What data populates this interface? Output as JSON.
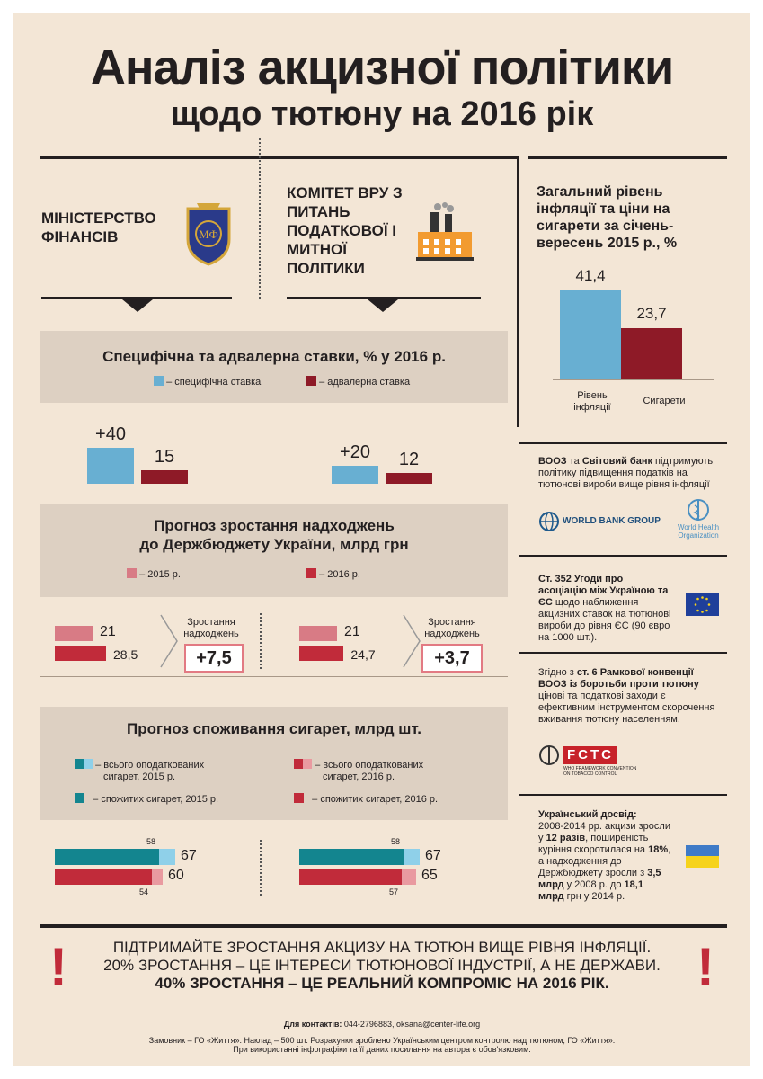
{
  "header": {
    "title_line1": "Аналіз акцизної політики",
    "title_line2": "щодо тютюну на 2016 рік"
  },
  "orgs": {
    "ministry": "МІНІСТЕРСТВО ФІНАНСІВ",
    "committee": "КОМІТЕТ ВРУ З ПИТАНЬ ПОДАТКОВОЇ І МИТНОЇ ПОЛІТИКИ"
  },
  "colors": {
    "blue": "#68afd2",
    "dark_red": "#8e1a27",
    "pink": "#d87b85",
    "red": "#c12b3a",
    "teal": "#13858f",
    "light_blue": "#8fd0e9",
    "pale_pink": "#e99aa0"
  },
  "rates_section": {
    "title": "Специфічна та адвалерна ставки, % у 2016 р.",
    "legend_specific": "– специфічна ставка",
    "legend_advalorem": "– адвалерна ставка"
  },
  "revenue_section": {
    "title_line1": "Прогноз зростання надходжень",
    "title_line2": "до Держбюджету України, млрд грн",
    "legend_2015": "– 2015 р.",
    "legend_2016": "– 2016 р.",
    "growth_label_line1": "Зростання",
    "growth_label_line2": "надходжень",
    "ministry_growth": "+7,5",
    "committee_growth": "+3,7"
  },
  "consumption_section": {
    "title": "Прогноз споживання сигарет, млрд шт.",
    "legend_taxed_2015_line1": "– всього оподаткованих",
    "legend_taxed_2015_line2": "сигарет, 2015 р.",
    "legend_taxed_2016_line1": "– всього оподаткованих",
    "legend_taxed_2016_line2": "сигарет, 2016 р.",
    "legend_consumed_2015": "– спожитих сигарет, 2015 р.",
    "legend_consumed_2016": "– спожитих сигарет, 2016 р."
  },
  "chart_data": [
    {
      "type": "bar",
      "id": "rates-ministry",
      "categories": [
        "специфічна ставка",
        "адвалерна ставка"
      ],
      "values": [
        40,
        15
      ],
      "labels": [
        "+40",
        "15"
      ]
    },
    {
      "type": "bar",
      "id": "rates-committee",
      "categories": [
        "специфічна ставка",
        "адвалерна ставка"
      ],
      "values": [
        20,
        12
      ],
      "labels": [
        "+20",
        "12"
      ]
    },
    {
      "type": "bar",
      "id": "revenue-ministry",
      "categories": [
        "2015 р.",
        "2016 р."
      ],
      "values": [
        21,
        28.5
      ],
      "labels": [
        "21",
        "28,5"
      ]
    },
    {
      "type": "bar",
      "id": "revenue-committee",
      "categories": [
        "2015 р.",
        "2016 р."
      ],
      "values": [
        21,
        24.7
      ],
      "labels": [
        "21",
        "24,7"
      ]
    },
    {
      "type": "bar",
      "id": "consumption-ministry",
      "series": [
        {
          "name": "спожитих сигарет, 2015 р.",
          "values": [
            58
          ]
        },
        {
          "name": "всього оподаткованих сигарет, 2015 р.",
          "values": [
            67
          ]
        },
        {
          "name": "спожитих сигарет, 2016 р.",
          "values": [
            54
          ]
        },
        {
          "name": "всього оподаткованих сигарет, 2016 р.",
          "values": [
            60
          ]
        }
      ]
    },
    {
      "type": "bar",
      "id": "consumption-committee",
      "series": [
        {
          "name": "спожитих сигарет, 2015 р.",
          "values": [
            58
          ]
        },
        {
          "name": "всього оподаткованих сигарет, 2015 р.",
          "values": [
            67
          ]
        },
        {
          "name": "спожитих сигарет, 2016 р.",
          "values": [
            57
          ]
        },
        {
          "name": "всього оподаткованих сигарет, 2016 р.",
          "values": [
            65
          ]
        }
      ]
    },
    {
      "type": "bar",
      "id": "inflation",
      "title": "Загальний рівень інфляції та ціни на сигарети за січень-вересень 2015 р., %",
      "categories": [
        "Рівень інфляції",
        "Сигарети"
      ],
      "values": [
        41.4,
        23.7
      ],
      "labels": [
        "41,4",
        "23,7"
      ]
    }
  ],
  "inflation_panel": {
    "title": "Загальний рівень інфляції та ціни на сигарети за січень-вересень 2015 р., %",
    "cat1_line1": "Рівень",
    "cat1_line2": "інфляції",
    "cat2": "Сигарети"
  },
  "side_panels": {
    "who_bank_bold1": "ВООЗ",
    "who_bank_mid1": " та ",
    "who_bank_bold2": "Світовий банк",
    "who_bank_rest": " підтримують політику підвищення податків на тютюнові вироби вище рівня інфляції",
    "wbg_logo": "WORLD BANK GROUP",
    "who_logo_line1": "World Health",
    "who_logo_line2": "Organization",
    "eu_bold": "Ст. 352 Угоди про асоціацію між Україною та ЄС",
    "eu_rest": " щодо наближення акцизних ставок на тютюнові вироби до рівня ЄС (90 євро на 1000 шт.).",
    "fctc_pre": "Згідно з ",
    "fctc_bold": "ст. 6 Рамкової конвенції ВООЗ із боротьби проти тютюну",
    "fctc_rest": " цінові та податкові заходи є ефективним інструментом скорочення вживання тютюну населенням.",
    "fctc_logo": "FCTC",
    "fctc_sub_line1": "WHO FRAMEWORK CONVENTION",
    "fctc_sub_line2": "ON TOBACCO CONTROL",
    "ukr_title": "Український досвід:",
    "ukr_p1": "2008-2014 рр. акцизи зросли у ",
    "ukr_b1": "12 разів",
    "ukr_p2": ", поширеність куріння скоротилася на ",
    "ukr_b2": "18%",
    "ukr_p3": ", а надходження до Держбюджету зросли з ",
    "ukr_b3": "3,5 млрд",
    "ukr_p4": " у 2008 р. до ",
    "ukr_b4": "18,1 млрд",
    "ukr_p5": " грн у 2014 р."
  },
  "footer": {
    "line1": "ПІДТРИМАЙТЕ ЗРОСТАННЯ АКЦИЗУ НА ТЮТЮН ВИЩЕ РІВНЯ ІНФЛЯЦІЇ.",
    "line2": "20% ЗРОСТАННЯ – ЦЕ ІНТЕРЕСИ ТЮТЮНОВОЇ ІНДУСТРІЇ, А НЕ ДЕРЖАВИ.",
    "line3": "40% ЗРОСТАННЯ – ЦЕ РЕАЛЬНИЙ КОМПРОМІС НА 2016 РІК.",
    "exclaim": "!",
    "contacts_label": "Для контактів:",
    "contacts_value": " 044-2796883, oksana@center-life.org",
    "credits_line1": "Замовник – ГО «Життя». Наклад – 500 шт. Розрахунки зроблено Українським центром контролю над тютюном, ГО «Життя».",
    "credits_line2": "При використанні інфографіки та її даних посилання на автора є обов'язковим."
  }
}
